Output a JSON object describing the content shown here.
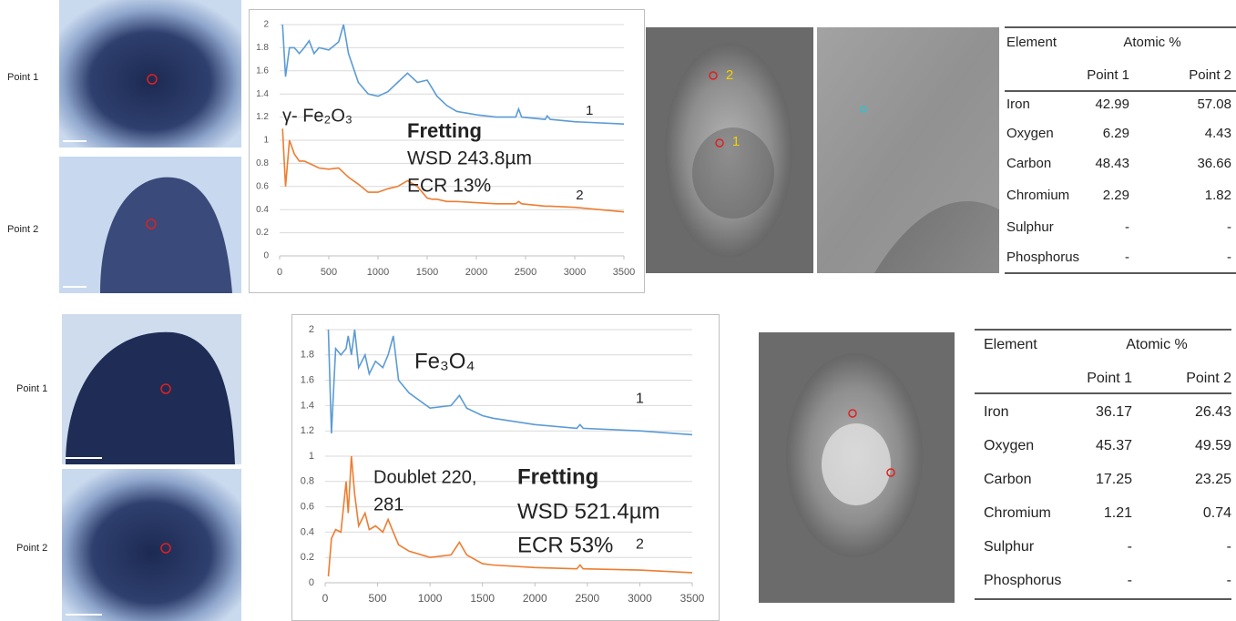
{
  "chart_data": [
    {
      "type": "line",
      "xlim": [
        0,
        3500
      ],
      "ylim": [
        0,
        2
      ],
      "xticks": [
        0,
        500,
        1000,
        1500,
        2000,
        2500,
        3000,
        3500
      ],
      "yticks": [
        0,
        0.2,
        0.4,
        0.6,
        0.8,
        1,
        1.2,
        1.4,
        1.6,
        1.8,
        2
      ],
      "grid": true,
      "x": [
        30,
        60,
        100,
        150,
        200,
        250,
        300,
        350,
        400,
        500,
        600,
        650,
        700,
        800,
        900,
        1000,
        1100,
        1200,
        1300,
        1400,
        1500,
        1550,
        1600,
        1700,
        1800,
        2000,
        2200,
        2400,
        2430,
        2460,
        2700,
        2720,
        2750,
        3000,
        3500
      ],
      "series": [
        {
          "name": "1",
          "color": "#5b9bd5",
          "values": [
            2.0,
            1.55,
            1.8,
            1.8,
            1.75,
            1.8,
            1.86,
            1.75,
            1.8,
            1.78,
            1.85,
            2.0,
            1.75,
            1.5,
            1.4,
            1.38,
            1.42,
            1.5,
            1.58,
            1.5,
            1.52,
            1.45,
            1.38,
            1.3,
            1.25,
            1.22,
            1.2,
            1.2,
            1.27,
            1.2,
            1.18,
            1.21,
            1.18,
            1.16,
            1.14
          ]
        },
        {
          "name": "2",
          "color": "#ed7d31",
          "values": [
            1.1,
            0.6,
            1.0,
            0.88,
            0.82,
            0.82,
            0.8,
            0.78,
            0.76,
            0.75,
            0.76,
            0.72,
            0.68,
            0.62,
            0.55,
            0.55,
            0.58,
            0.6,
            0.65,
            0.6,
            0.5,
            0.49,
            0.49,
            0.47,
            0.47,
            0.46,
            0.45,
            0.45,
            0.47,
            0.45,
            0.43,
            0.43,
            0.43,
            0.42,
            0.38
          ]
        }
      ],
      "annotations": [
        "γ- Fe₂O₃",
        "Fretting",
        "WSD 243.8µm",
        "ECR 13%"
      ]
    },
    {
      "type": "line",
      "xlim": [
        0,
        3500
      ],
      "ylim": [
        0,
        2
      ],
      "xticks": [
        0,
        500,
        1000,
        1500,
        2000,
        2500,
        3000,
        3500
      ],
      "yticks": [
        0,
        0.2,
        0.4,
        0.6,
        0.8,
        1,
        1.2,
        1.4,
        1.6,
        1.8,
        2
      ],
      "grid": true,
      "x": [
        30,
        60,
        100,
        150,
        200,
        220,
        250,
        281,
        320,
        380,
        420,
        480,
        550,
        600,
        650,
        700,
        800,
        1000,
        1200,
        1280,
        1350,
        1500,
        1600,
        2000,
        2400,
        2430,
        2460,
        3000,
        3500
      ],
      "series": [
        {
          "name": "1",
          "color": "#5b9bd5",
          "values": [
            2.0,
            1.18,
            1.85,
            1.8,
            1.85,
            1.95,
            1.8,
            2.0,
            1.7,
            1.8,
            1.65,
            1.75,
            1.7,
            1.8,
            1.95,
            1.6,
            1.5,
            1.38,
            1.4,
            1.48,
            1.38,
            1.32,
            1.3,
            1.25,
            1.22,
            1.25,
            1.22,
            1.2,
            1.17
          ]
        },
        {
          "name": "2",
          "color": "#ed7d31",
          "values": [
            0.05,
            0.35,
            0.42,
            0.4,
            0.8,
            0.55,
            1.0,
            0.7,
            0.45,
            0.55,
            0.42,
            0.45,
            0.4,
            0.5,
            0.4,
            0.3,
            0.25,
            0.2,
            0.22,
            0.32,
            0.22,
            0.15,
            0.14,
            0.12,
            0.11,
            0.14,
            0.11,
            0.1,
            0.08
          ]
        }
      ],
      "annotations": [
        "Fe₃O₄",
        "Doublet 220,",
        "281",
        "Fretting",
        "WSD 521.4µm",
        "ECR 53%"
      ]
    }
  ],
  "optical": [
    [
      "Point 1",
      "Point 2"
    ],
    [
      "Point 1",
      "Point 2"
    ]
  ],
  "sem_labels": [
    "2",
    "1"
  ],
  "tables": [
    {
      "header": [
        "Element",
        "Atomic %"
      ],
      "subheader": [
        "Point 1",
        "Point 2"
      ],
      "rows": [
        [
          "Iron",
          42.99,
          57.08
        ],
        [
          "Oxygen",
          6.29,
          4.43
        ],
        [
          "Carbon",
          48.43,
          36.66
        ],
        [
          "Chromium",
          2.29,
          1.82
        ],
        [
          "Sulphur",
          "-",
          "-"
        ],
        [
          "Phosphorus",
          "-",
          "-"
        ]
      ]
    },
    {
      "header": [
        "Element",
        "Atomic %"
      ],
      "subheader": [
        "Point 1",
        "Point 2"
      ],
      "rows": [
        [
          "Iron",
          36.17,
          26.43
        ],
        [
          "Oxygen",
          45.37,
          49.59
        ],
        [
          "Carbon",
          17.25,
          23.25
        ],
        [
          "Chromium",
          1.21,
          0.74
        ],
        [
          "Sulphur",
          "-",
          "-"
        ],
        [
          "Phosphorus",
          "-",
          "-"
        ]
      ]
    }
  ]
}
